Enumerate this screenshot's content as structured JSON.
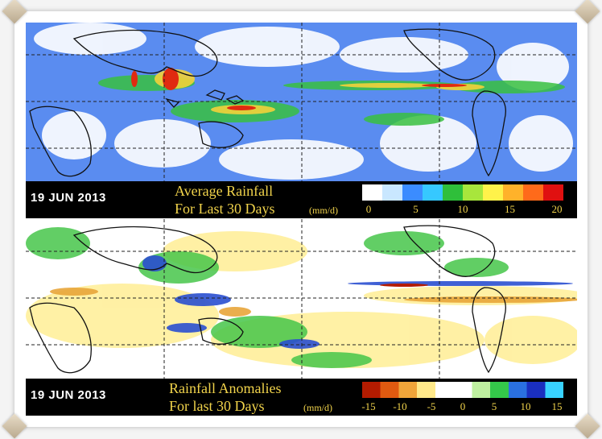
{
  "panels": [
    {
      "id": "average",
      "date": "19 JUN 2013",
      "title_line1": "Average Rainfall",
      "title_line2": "For Last 30 Days",
      "units": "(mm/d)",
      "colorbar_ticks": [
        "0",
        "5",
        "10",
        "15",
        "20"
      ],
      "colorbar_colors": [
        "#ffffff",
        "#c9e7ff",
        "#3b8cff",
        "#36c8ff",
        "#2fbf3a",
        "#a8e63c",
        "#fff24a",
        "#ffb22a",
        "#ff6a1a",
        "#e01010"
      ]
    },
    {
      "id": "anomalies",
      "date": "19 JUN 2013",
      "title_line1": "Rainfall Anomalies",
      "title_line2": "For last 30 Days",
      "units": "(mm/d)",
      "colorbar_ticks": [
        "-15",
        "-10",
        "-5",
        "0",
        "5",
        "10",
        "15"
      ],
      "colorbar_colors": [
        "#b31b00",
        "#e05a10",
        "#f0a53a",
        "#ffe98a",
        "#ffffff",
        "#ffffff",
        "#bff0a0",
        "#34c84a",
        "#2a70e0",
        "#1a2fbf",
        "#38d2ff"
      ]
    }
  ]
}
